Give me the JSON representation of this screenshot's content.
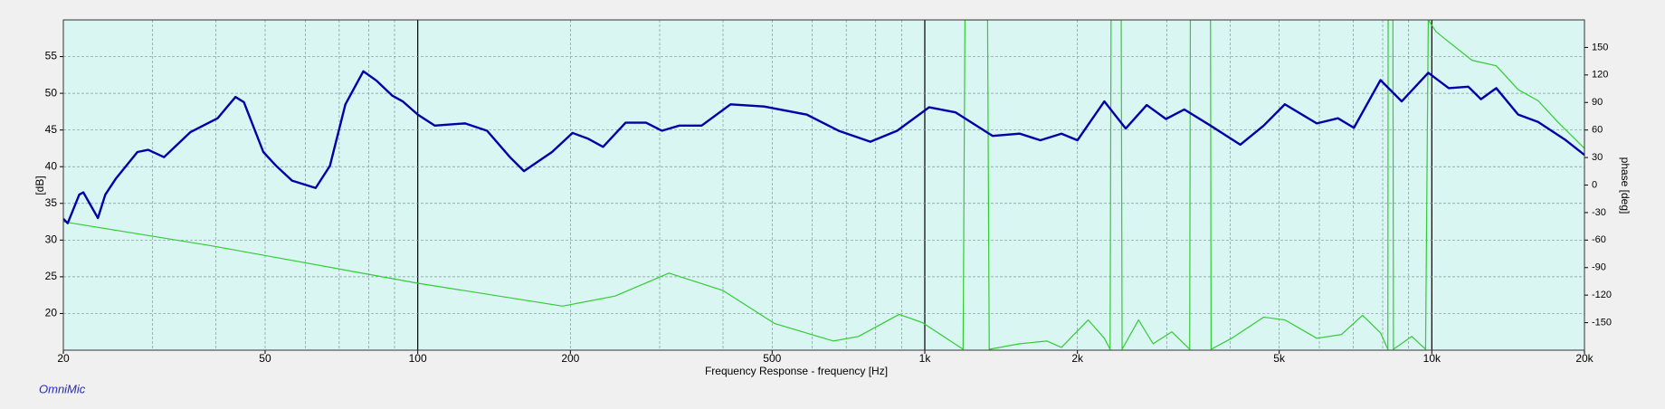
{
  "chart_data": {
    "type": "line",
    "x_label": "Frequency Response  - frequency [Hz]",
    "y_label": "[dB]",
    "y2_label": "phase [deg]",
    "footer": "OmniMic",
    "xscale": "log",
    "xlim": [
      20,
      20000
    ],
    "xticks": [
      20,
      50,
      100,
      200,
      500,
      {
        "value": 1000,
        "label": "1k"
      },
      {
        "value": 2000,
        "label": "2k"
      },
      {
        "value": 5000,
        "label": "5k"
      },
      {
        "value": 10000,
        "label": "10k"
      },
      {
        "value": 20000,
        "label": "20k"
      }
    ],
    "ylim": [
      15,
      60
    ],
    "yticks": [
      20,
      25,
      30,
      35,
      40,
      45,
      50,
      55
    ],
    "y2lim": [
      -180,
      180
    ],
    "y2ticks": [
      -150,
      -120,
      -90,
      -60,
      -30,
      0,
      30,
      60,
      90,
      120,
      150
    ],
    "grid": true,
    "series": [
      {
        "color": "#0000a8",
        "x": [
          20,
          20.4,
          21.5,
          21.9,
          23.4,
          24.2,
          25.4,
          28,
          29.4,
          31.6,
          35.6,
          40.3,
          43.7,
          45.4,
          49.6,
          52.6,
          56.5,
          62.9,
          67.1,
          72,
          78.1,
          83,
          89,
          93.4,
          100,
          108,
          124,
          137,
          152,
          162,
          171,
          184,
          202,
          217,
          232,
          257,
          282,
          303,
          328,
          363,
          414,
          482,
          585,
          676,
          781,
          882,
          1020,
          1150,
          1360,
          1540,
          1690,
          1860,
          2000,
          2260,
          2490,
          2740,
          2990,
          3250,
          3660,
          4190,
          4660,
          5130,
          5930,
          6530,
          7020,
          7920,
          8720,
          9840,
          10800,
          11800,
          12500,
          13400,
          14800,
          16200,
          18300,
          20000
        ],
        "values": [
          32.9,
          32.3,
          36.2,
          36.5,
          33.0,
          36.2,
          38.4,
          42.0,
          42.3,
          41.3,
          44.7,
          46.6,
          49.5,
          48.8,
          42.0,
          40.1,
          38.1,
          37.1,
          40.1,
          48.5,
          53.0,
          51.7,
          49.7,
          48.9,
          47.1,
          45.6,
          45.9,
          44.9,
          41.3,
          39.4,
          40.5,
          42.0,
          44.6,
          43.8,
          42.7,
          46.0,
          46.0,
          44.9,
          45.6,
          45.6,
          48.5,
          48.2,
          47.1,
          44.9,
          43.4,
          44.9,
          48.1,
          47.4,
          44.2,
          44.5,
          43.6,
          44.5,
          43.6,
          48.9,
          45.2,
          48.4,
          46.5,
          47.8,
          45.6,
          43.0,
          45.6,
          48.5,
          45.9,
          46.6,
          45.3,
          51.8,
          48.9,
          52.8,
          50.7,
          50.9,
          49.2,
          50.7,
          47.1,
          46.1,
          43.7,
          41.6
        ]
      },
      {
        "color": "#33cc33",
        "axis": "y2",
        "x": [
          20,
          39,
          100,
          193,
          245,
          313,
          400,
          506,
          660,
          740,
          890,
          990,
          1190,
          1200,
          1330,
          1340,
          1540,
          1740,
          1860,
          2100,
          2260,
          2320,
          2330,
          2440,
          2450,
          2640,
          2820,
          3070,
          3330,
          3340,
          3660,
          3670,
          4030,
          4660,
          5130,
          5930,
          6630,
          7300,
          7920,
          8190,
          8200,
          8380,
          8400,
          9130,
          9720,
          9840,
          10200,
          10800,
          12000,
          13400,
          14800,
          16200,
          17700,
          20000
        ],
        "values": [
          -40,
          -66,
          -107,
          -132,
          -121,
          -96,
          -115,
          -151,
          -170,
          -165,
          -141,
          -150,
          -179,
          180,
          180,
          -179,
          -173,
          -170,
          -177,
          -147,
          -167,
          -179,
          180,
          180,
          -179,
          -147,
          -173,
          -160,
          -179,
          180,
          180,
          -179,
          -167,
          -144,
          -147,
          -167,
          -163,
          -142,
          -161,
          -179,
          180,
          180,
          -179,
          -165,
          -179,
          180,
          167,
          156,
          136,
          130,
          104,
          92,
          69,
          40
        ]
      }
    ]
  }
}
